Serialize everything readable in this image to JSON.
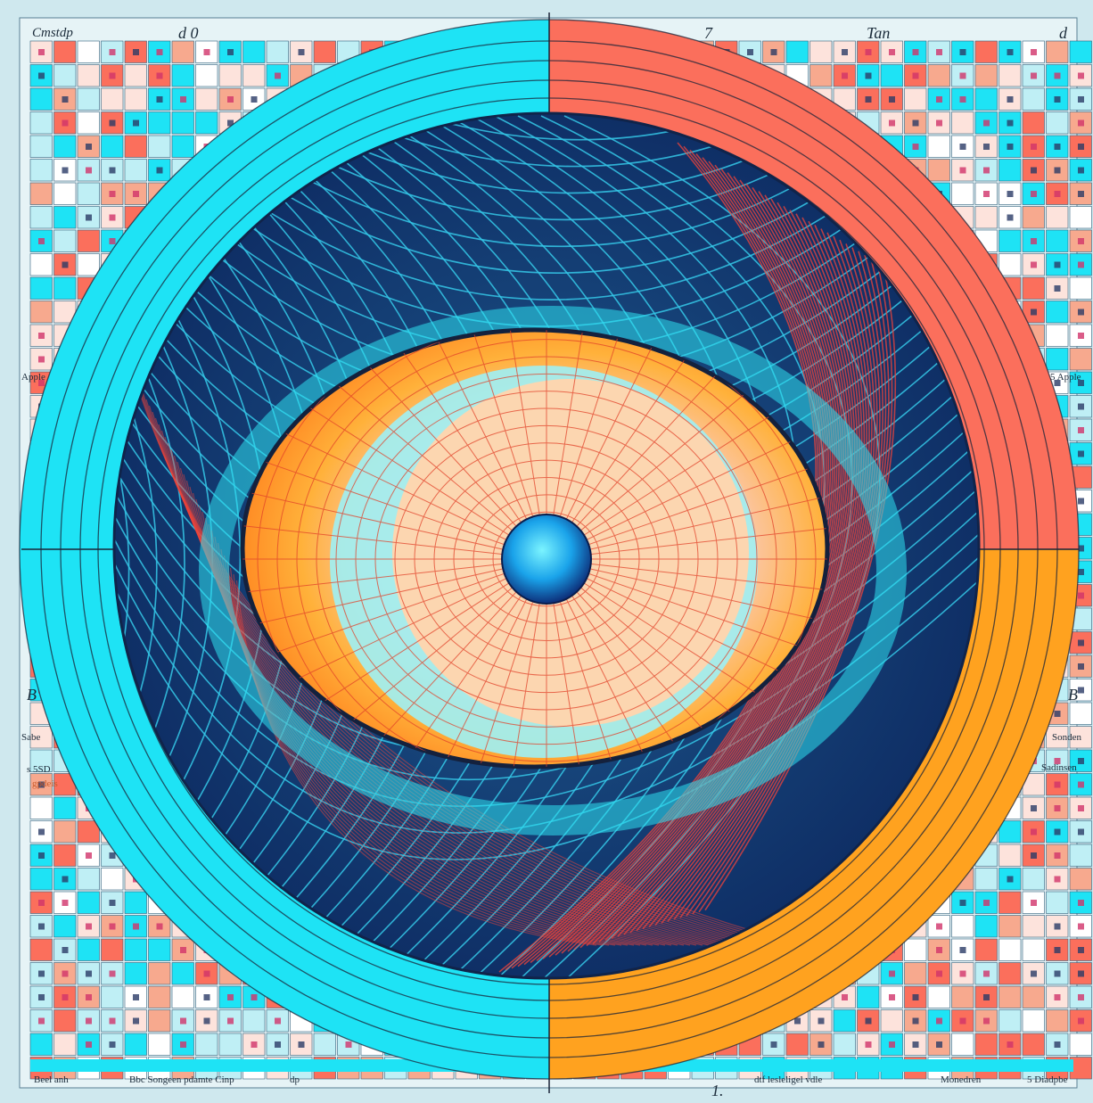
{
  "labels": {
    "top_left": "Cmstdp",
    "top_mid_left": "d 0",
    "top_mid_right": "7",
    "top_right": "Tan",
    "top_far_right": "d",
    "left_mid_top": "Apple",
    "right_mid_top": "5 Apple",
    "left_side_b": "B",
    "right_side_b": "B",
    "left_side_sub": "Sabe",
    "right_side_sub": "Sonden",
    "left_side_sub2": "s 5SD",
    "left_side_sub3": "gpdeis",
    "right_side_sub2": "Sadinsen",
    "bottom_1": "Beel anh",
    "bottom_2": "Bbc Songeen pdamte Cinp",
    "bottom_3": "dp",
    "bottom_center": "1.",
    "bottom_4": "dtf lesleligel vdle",
    "bottom_5": "Monedren",
    "bottom_6": "5 Diadpbe"
  },
  "colors": {
    "cyan": "#1ee3f5",
    "coral": "#fb6f5c",
    "orange": "#ffa21f",
    "peach": "#fcd2aa",
    "navy": "#163b6e",
    "core": "#1aa3ea",
    "background": "#cfe8ee"
  }
}
